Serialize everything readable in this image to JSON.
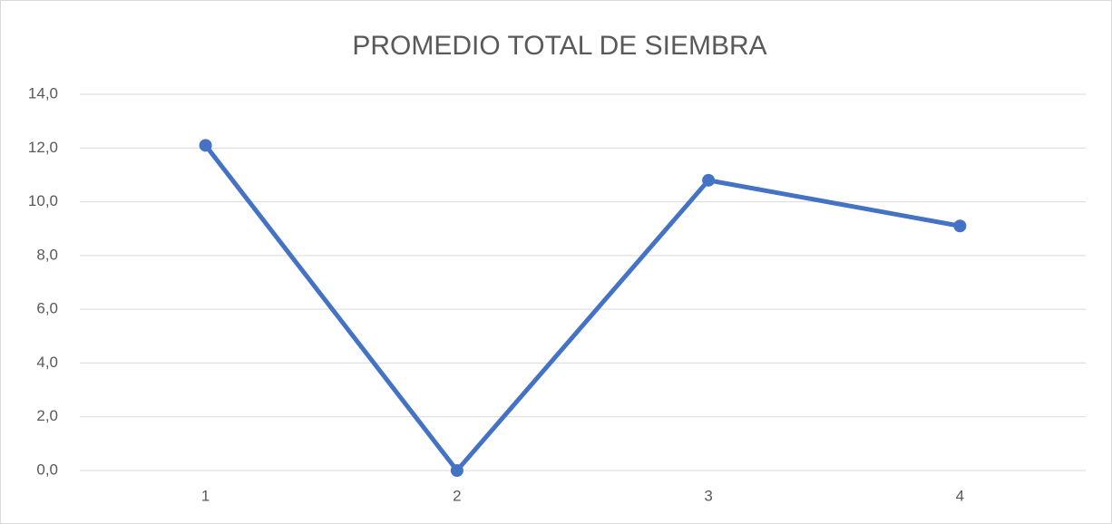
{
  "chart_data": {
    "type": "line",
    "title": "PROMEDIO TOTAL DE SIEMBRA",
    "categories": [
      "1",
      "2",
      "3",
      "4"
    ],
    "values": [
      12.1,
      0,
      10.8,
      9.1
    ],
    "color": "#4472c4",
    "ylim": [
      0,
      14
    ],
    "yticks": [
      {
        "value": 0,
        "label": "0,0"
      },
      {
        "value": 2,
        "label": "2,0"
      },
      {
        "value": 4,
        "label": "4,0"
      },
      {
        "value": 6,
        "label": "6,0"
      },
      {
        "value": 8,
        "label": "8,0"
      },
      {
        "value": 10,
        "label": "10,0"
      },
      {
        "value": 12,
        "label": "12,0"
      },
      {
        "value": 14,
        "label": "14,0"
      }
    ],
    "grid": true
  }
}
